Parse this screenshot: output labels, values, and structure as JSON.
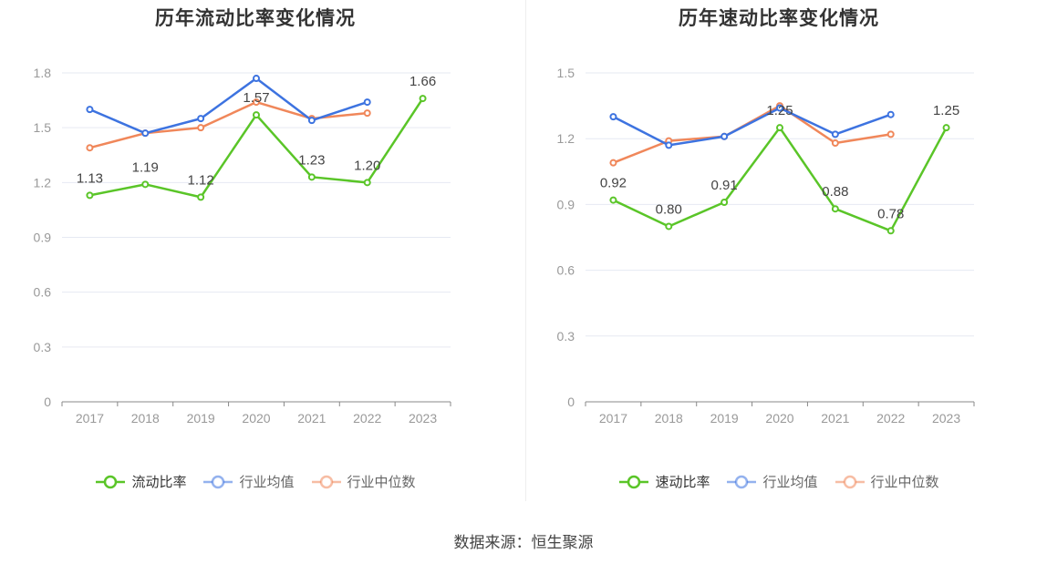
{
  "source": "数据来源：恒生聚源",
  "chart_data": [
    {
      "type": "line",
      "title": "历年流动比率变化情况",
      "categories": [
        "2017",
        "2018",
        "2019",
        "2020",
        "2021",
        "2022",
        "2023"
      ],
      "ylim": [
        0,
        1.8
      ],
      "yticks": [
        "0",
        "0.3",
        "0.6",
        "0.9",
        "1.2",
        "1.5",
        "1.8"
      ],
      "legend_position": "bottom",
      "series": [
        {
          "name": "流动比率",
          "color": "#5ac528",
          "values": [
            1.13,
            1.19,
            1.12,
            1.57,
            1.23,
            1.2,
            1.66
          ],
          "labels": [
            "1.13",
            "1.19",
            "1.12",
            "1.57",
            "1.23",
            "1.20",
            "1.66"
          ]
        },
        {
          "name": "行业均值",
          "color": "#3d73e0",
          "values": [
            1.6,
            1.47,
            1.55,
            1.77,
            1.54,
            1.64,
            null
          ]
        },
        {
          "name": "行业中位数",
          "color": "#f0875a",
          "values": [
            1.39,
            1.47,
            1.5,
            1.64,
            1.55,
            1.58,
            null
          ]
        }
      ]
    },
    {
      "type": "line",
      "title": "历年速动比率变化情况",
      "categories": [
        "2017",
        "2018",
        "2019",
        "2020",
        "2021",
        "2022",
        "2023"
      ],
      "ylim": [
        0,
        1.5
      ],
      "yticks": [
        "0",
        "0.3",
        "0.6",
        "0.9",
        "1.2",
        "1.5"
      ],
      "legend_position": "bottom",
      "series": [
        {
          "name": "速动比率",
          "color": "#5ac528",
          "values": [
            0.92,
            0.8,
            0.91,
            1.25,
            0.88,
            0.78,
            1.25
          ],
          "labels": [
            "0.92",
            "0.80",
            "0.91",
            "1.25",
            "0.88",
            "0.78",
            "1.25"
          ]
        },
        {
          "name": "行业均值",
          "color": "#3d73e0",
          "values": [
            1.3,
            1.17,
            1.21,
            1.34,
            1.22,
            1.31,
            null
          ]
        },
        {
          "name": "行业中位数",
          "color": "#f0875a",
          "values": [
            1.09,
            1.19,
            1.21,
            1.35,
            1.18,
            1.22,
            null
          ]
        }
      ]
    }
  ]
}
